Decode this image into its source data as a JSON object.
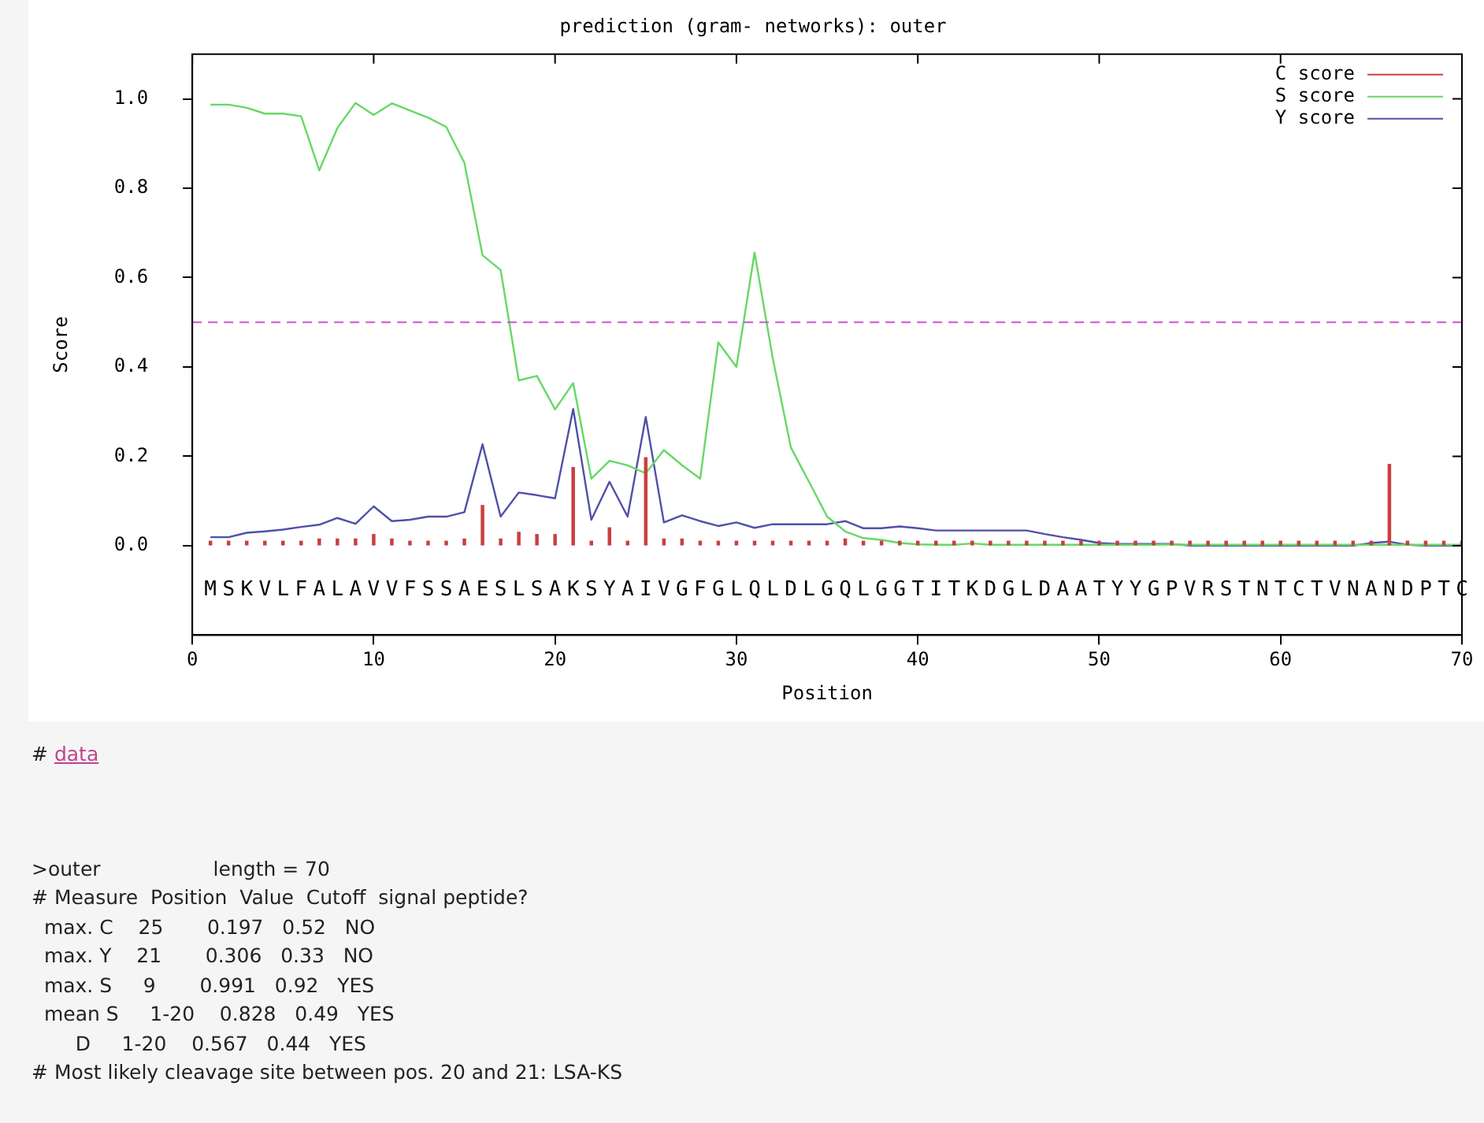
{
  "chart_data": {
    "type": "line",
    "title": "prediction (gram- networks): outer",
    "xlabel": "Position",
    "ylabel": "Score",
    "xlim": [
      0,
      70
    ],
    "xticks": [
      0,
      10,
      20,
      30,
      40,
      50,
      60,
      70
    ],
    "ylim": [
      -0.2,
      1.1
    ],
    "yticks": [
      {
        "value": 0,
        "label": "0.0"
      },
      {
        "value": 0.2,
        "label": "0.2"
      },
      {
        "value": 0.4,
        "label": "0.4"
      },
      {
        "value": 0.6,
        "label": "0.6"
      },
      {
        "value": 0.8,
        "label": "0.8"
      },
      {
        "value": 1,
        "label": "1.0"
      }
    ],
    "x": [
      1,
      2,
      3,
      4,
      5,
      6,
      7,
      8,
      9,
      10,
      11,
      12,
      13,
      14,
      15,
      16,
      17,
      18,
      19,
      20,
      21,
      22,
      23,
      24,
      25,
      26,
      27,
      28,
      29,
      30,
      31,
      32,
      33,
      34,
      35,
      36,
      37,
      38,
      39,
      40,
      41,
      42,
      43,
      44,
      45,
      46,
      47,
      48,
      49,
      50,
      51,
      52,
      53,
      54,
      55,
      56,
      57,
      58,
      59,
      60,
      61,
      62,
      63,
      64,
      65,
      66,
      67,
      68,
      69,
      70
    ],
    "series": [
      {
        "name": "C score",
        "type": "bar",
        "color": "#c84040",
        "values": [
          0.01,
          0.01,
          0.01,
          0.01,
          0.01,
          0.01,
          0.015,
          0.015,
          0.015,
          0.025,
          0.015,
          0.01,
          0.01,
          0.01,
          0.015,
          0.09,
          0.015,
          0.03,
          0.025,
          0.025,
          0.175,
          0.01,
          0.04,
          0.01,
          0.197,
          0.015,
          0.015,
          0.01,
          0.01,
          0.01,
          0.01,
          0.01,
          0.01,
          0.01,
          0.01,
          0.015,
          0.01,
          0.01,
          0.01,
          0.01,
          0.01,
          0.01,
          0.01,
          0.01,
          0.01,
          0.01,
          0.01,
          0.01,
          0.01,
          0.01,
          0.01,
          0.01,
          0.01,
          0.01,
          0.01,
          0.01,
          0.01,
          0.01,
          0.01,
          0.01,
          0.01,
          0.01,
          0.01,
          0.01,
          0.01,
          0.182,
          0.01,
          0.01,
          0.01,
          0.01
        ]
      },
      {
        "name": "S score",
        "color": "#66d866",
        "values": [
          0.987,
          0.987,
          0.98,
          0.967,
          0.967,
          0.961,
          0.84,
          0.935,
          0.991,
          0.964,
          0.99,
          0.974,
          0.958,
          0.937,
          0.857,
          0.65,
          0.617,
          0.37,
          0.38,
          0.305,
          0.364,
          0.15,
          0.19,
          0.18,
          0.162,
          0.214,
          0.18,
          0.15,
          0.455,
          0.4,
          0.656,
          0.42,
          0.22,
          0.143,
          0.065,
          0.032,
          0.017,
          0.013,
          0.006,
          0.003,
          0.002,
          0.002,
          0.005,
          0.002,
          0.002,
          0.002,
          0.002,
          0.002,
          0.002,
          0.002,
          0.002,
          0.002,
          0.002,
          0.003,
          0.002,
          0.002,
          0.002,
          0.002,
          0.002,
          0.002,
          0.002,
          0.002,
          0.002,
          0.002,
          0.002,
          0.002,
          0.002,
          0.002,
          0.002,
          0.002
        ]
      },
      {
        "name": "Y score",
        "color": "#5050a8",
        "values": [
          0.019,
          0.019,
          0.029,
          0.032,
          0.036,
          0.042,
          0.047,
          0.062,
          0.049,
          0.088,
          0.055,
          0.058,
          0.065,
          0.065,
          0.075,
          0.227,
          0.065,
          0.119,
          0.113,
          0.106,
          0.306,
          0.058,
          0.143,
          0.065,
          0.288,
          0.052,
          0.068,
          0.055,
          0.044,
          0.052,
          0.04,
          0.048,
          0.048,
          0.048,
          0.048,
          0.055,
          0.039,
          0.039,
          0.043,
          0.039,
          0.034,
          0.034,
          0.034,
          0.034,
          0.034,
          0.034,
          0.026,
          0.019,
          0.013,
          0.006,
          0.004,
          0.004,
          0.004,
          0.004,
          0,
          0,
          0,
          0,
          0,
          0,
          0,
          0,
          0,
          0,
          0.006,
          0.009,
          0.002,
          0,
          0,
          0
        ]
      }
    ],
    "marker": "none",
    "grid": false,
    "legend": "top right",
    "ref_lines": [
      {
        "axis": "y",
        "value": 0.5,
        "color": "#cc55cc",
        "line_style": "dashed"
      }
    ],
    "annotations": [
      "MSKVLFALAVVFSSAESLSAKSYAIVGFGLQLDLGQLGGTITKDGLDAATYYGPVRSTNTCTVNANDPTC",
      "# data",
      ">outer                  length = 70",
      "# Measure  Position  Value  Cutoff  signal peptide?",
      "  max. C    25       0.197   0.52   NO",
      "  max. Y    21       0.306   0.33   NO",
      "  max. S     9       0.991   0.92   YES",
      "  mean S     1-20    0.828   0.49   YES",
      "       D     1-20    0.567   0.44   YES",
      "# Most likely cleavage site between pos. 20 and 21: LSA-KS"
    ]
  }
}
